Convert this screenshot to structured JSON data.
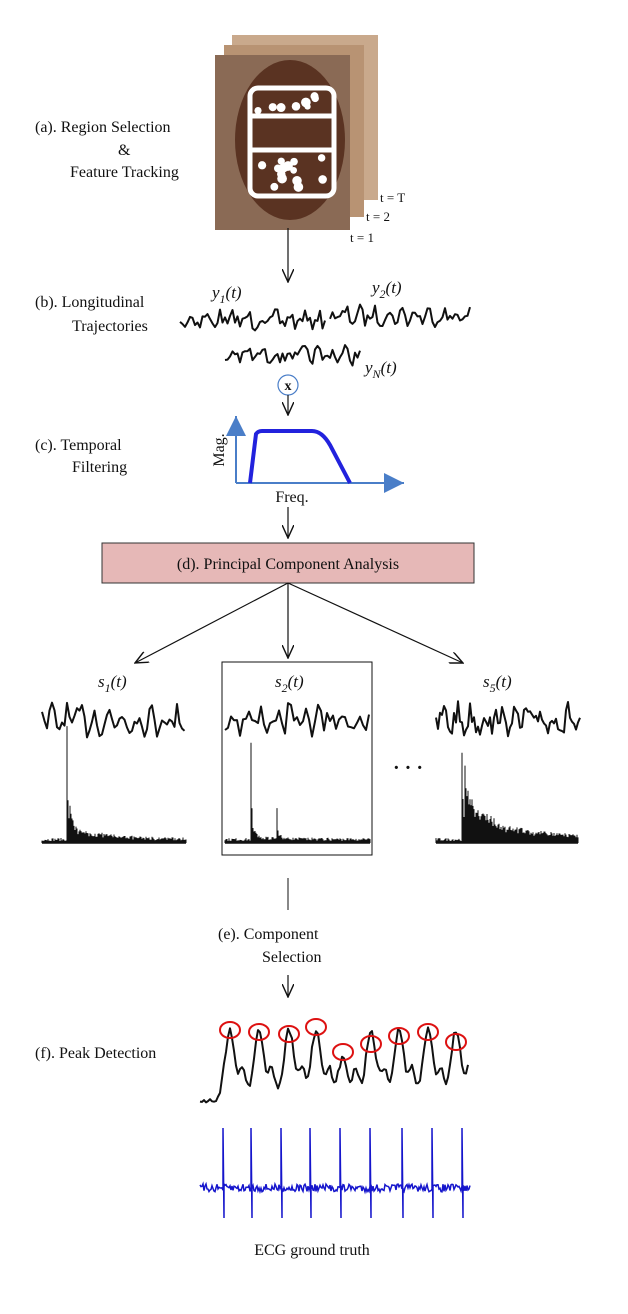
{
  "region_selection": {
    "label_lines": [
      "(a).  Region Selection",
      "&",
      "Feature Tracking"
    ],
    "frame_labels": [
      "t = T",
      "t = 2",
      "t = 1"
    ]
  },
  "trajectories": {
    "label_lines": [
      "(b).  Longitudinal",
      "Trajectories"
    ],
    "signals": [
      {
        "base": "y",
        "sub": "1",
        "arg": "(t)"
      },
      {
        "base": "y",
        "sub": "2",
        "arg": "(t)"
      },
      {
        "base": "y",
        "sub": "N",
        "arg": "(t)"
      }
    ]
  },
  "multiply_symbol": "x",
  "filtering": {
    "label_lines": [
      "(c). Temporal",
      "Filtering"
    ],
    "y_axis": "Mag.",
    "x_axis": "Freq."
  },
  "pca": {
    "label": "(d).  Principal Component Analysis"
  },
  "components": {
    "items": [
      {
        "base": "s",
        "sub": "1",
        "arg": "(t)"
      },
      {
        "base": "s",
        "sub": "2",
        "arg": "(t)"
      },
      {
        "base": "s",
        "sub": "5",
        "arg": "(t)"
      }
    ],
    "ellipsis": "· · ·"
  },
  "selection": {
    "label_lines": [
      "(e).  Component",
      "Selection"
    ]
  },
  "peak_detection": {
    "label": "(f). Peak Detection",
    "ecg_caption": "ECG ground truth"
  }
}
